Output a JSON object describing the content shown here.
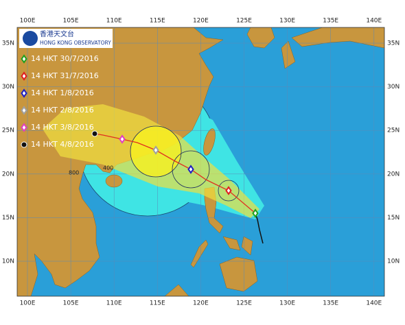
{
  "logo": {
    "chinese": "香港天文台",
    "english": "HONG KONG OBSERVATORY"
  },
  "longitude_labels": [
    "100E",
    "105E",
    "110E",
    "115E",
    "120E",
    "125E",
    "130E",
    "135E",
    "140E"
  ],
  "latitude_labels": [
    "35N",
    "30N",
    "25N",
    "20N",
    "15N",
    "10N"
  ],
  "legend": [
    {
      "label": "14 HKT 30/7/2016",
      "color": "#22a020"
    },
    {
      "label": "14 HKT 31/7/2016",
      "color": "#e02020"
    },
    {
      "label": "14 HKT 1/8/2016",
      "color": "#2020c0"
    },
    {
      "label": "14 HKT 2/8/2016",
      "color": "#a0a0a0"
    },
    {
      "label": "14 HKT 3/8/2016",
      "color": "#e040c0"
    },
    {
      "label": "14 HKT 4/8/2016",
      "color": "#111111"
    }
  ],
  "radius_labels": [
    "400",
    "800"
  ]
}
